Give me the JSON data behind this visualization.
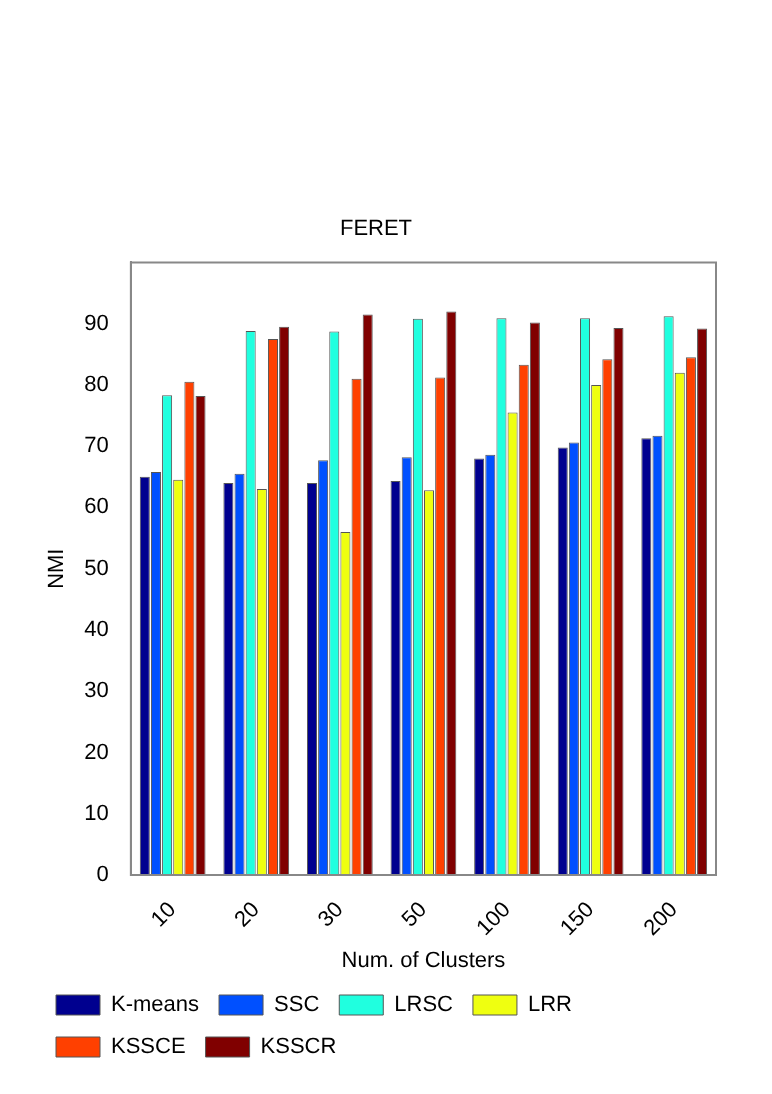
{
  "chart_data": {
    "type": "bar",
    "title": "FERET",
    "xlabel": "Num. of Clusters",
    "ylabel": "NMI",
    "categories": [
      "10",
      "20",
      "30",
      "50",
      "100",
      "150",
      "200"
    ],
    "series": [
      {
        "name": "K-means",
        "color": "#00008f",
        "values": [
          65,
          64,
          64,
          64.3,
          68,
          69.8,
          71.3
        ]
      },
      {
        "name": "SSC",
        "color": "#0050ff",
        "values": [
          65.8,
          65.5,
          67.7,
          68.2,
          68.6,
          70.6,
          71.7
        ]
      },
      {
        "name": "LRSC",
        "color": "#20ffdf",
        "values": [
          78.3,
          88.8,
          88.7,
          90.8,
          90.9,
          90.9,
          91.2
        ]
      },
      {
        "name": "LRR",
        "color": "#efff10",
        "values": [
          64.5,
          63,
          56,
          62.8,
          75.5,
          80,
          82
        ]
      },
      {
        "name": "KSSCE",
        "color": "#ff4000",
        "values": [
          80.5,
          87.5,
          81,
          81.2,
          83.3,
          84.2,
          84.5
        ]
      },
      {
        "name": "KSSCR",
        "color": "#800000",
        "values": [
          78.2,
          89.5,
          91.5,
          92,
          90.2,
          89.3,
          89.2
        ]
      }
    ],
    "ylim": [
      0,
      100
    ],
    "yticks": [
      0,
      10,
      20,
      30,
      40,
      50,
      60,
      70,
      80,
      90
    ],
    "grid": false,
    "legend": "bottom left"
  }
}
